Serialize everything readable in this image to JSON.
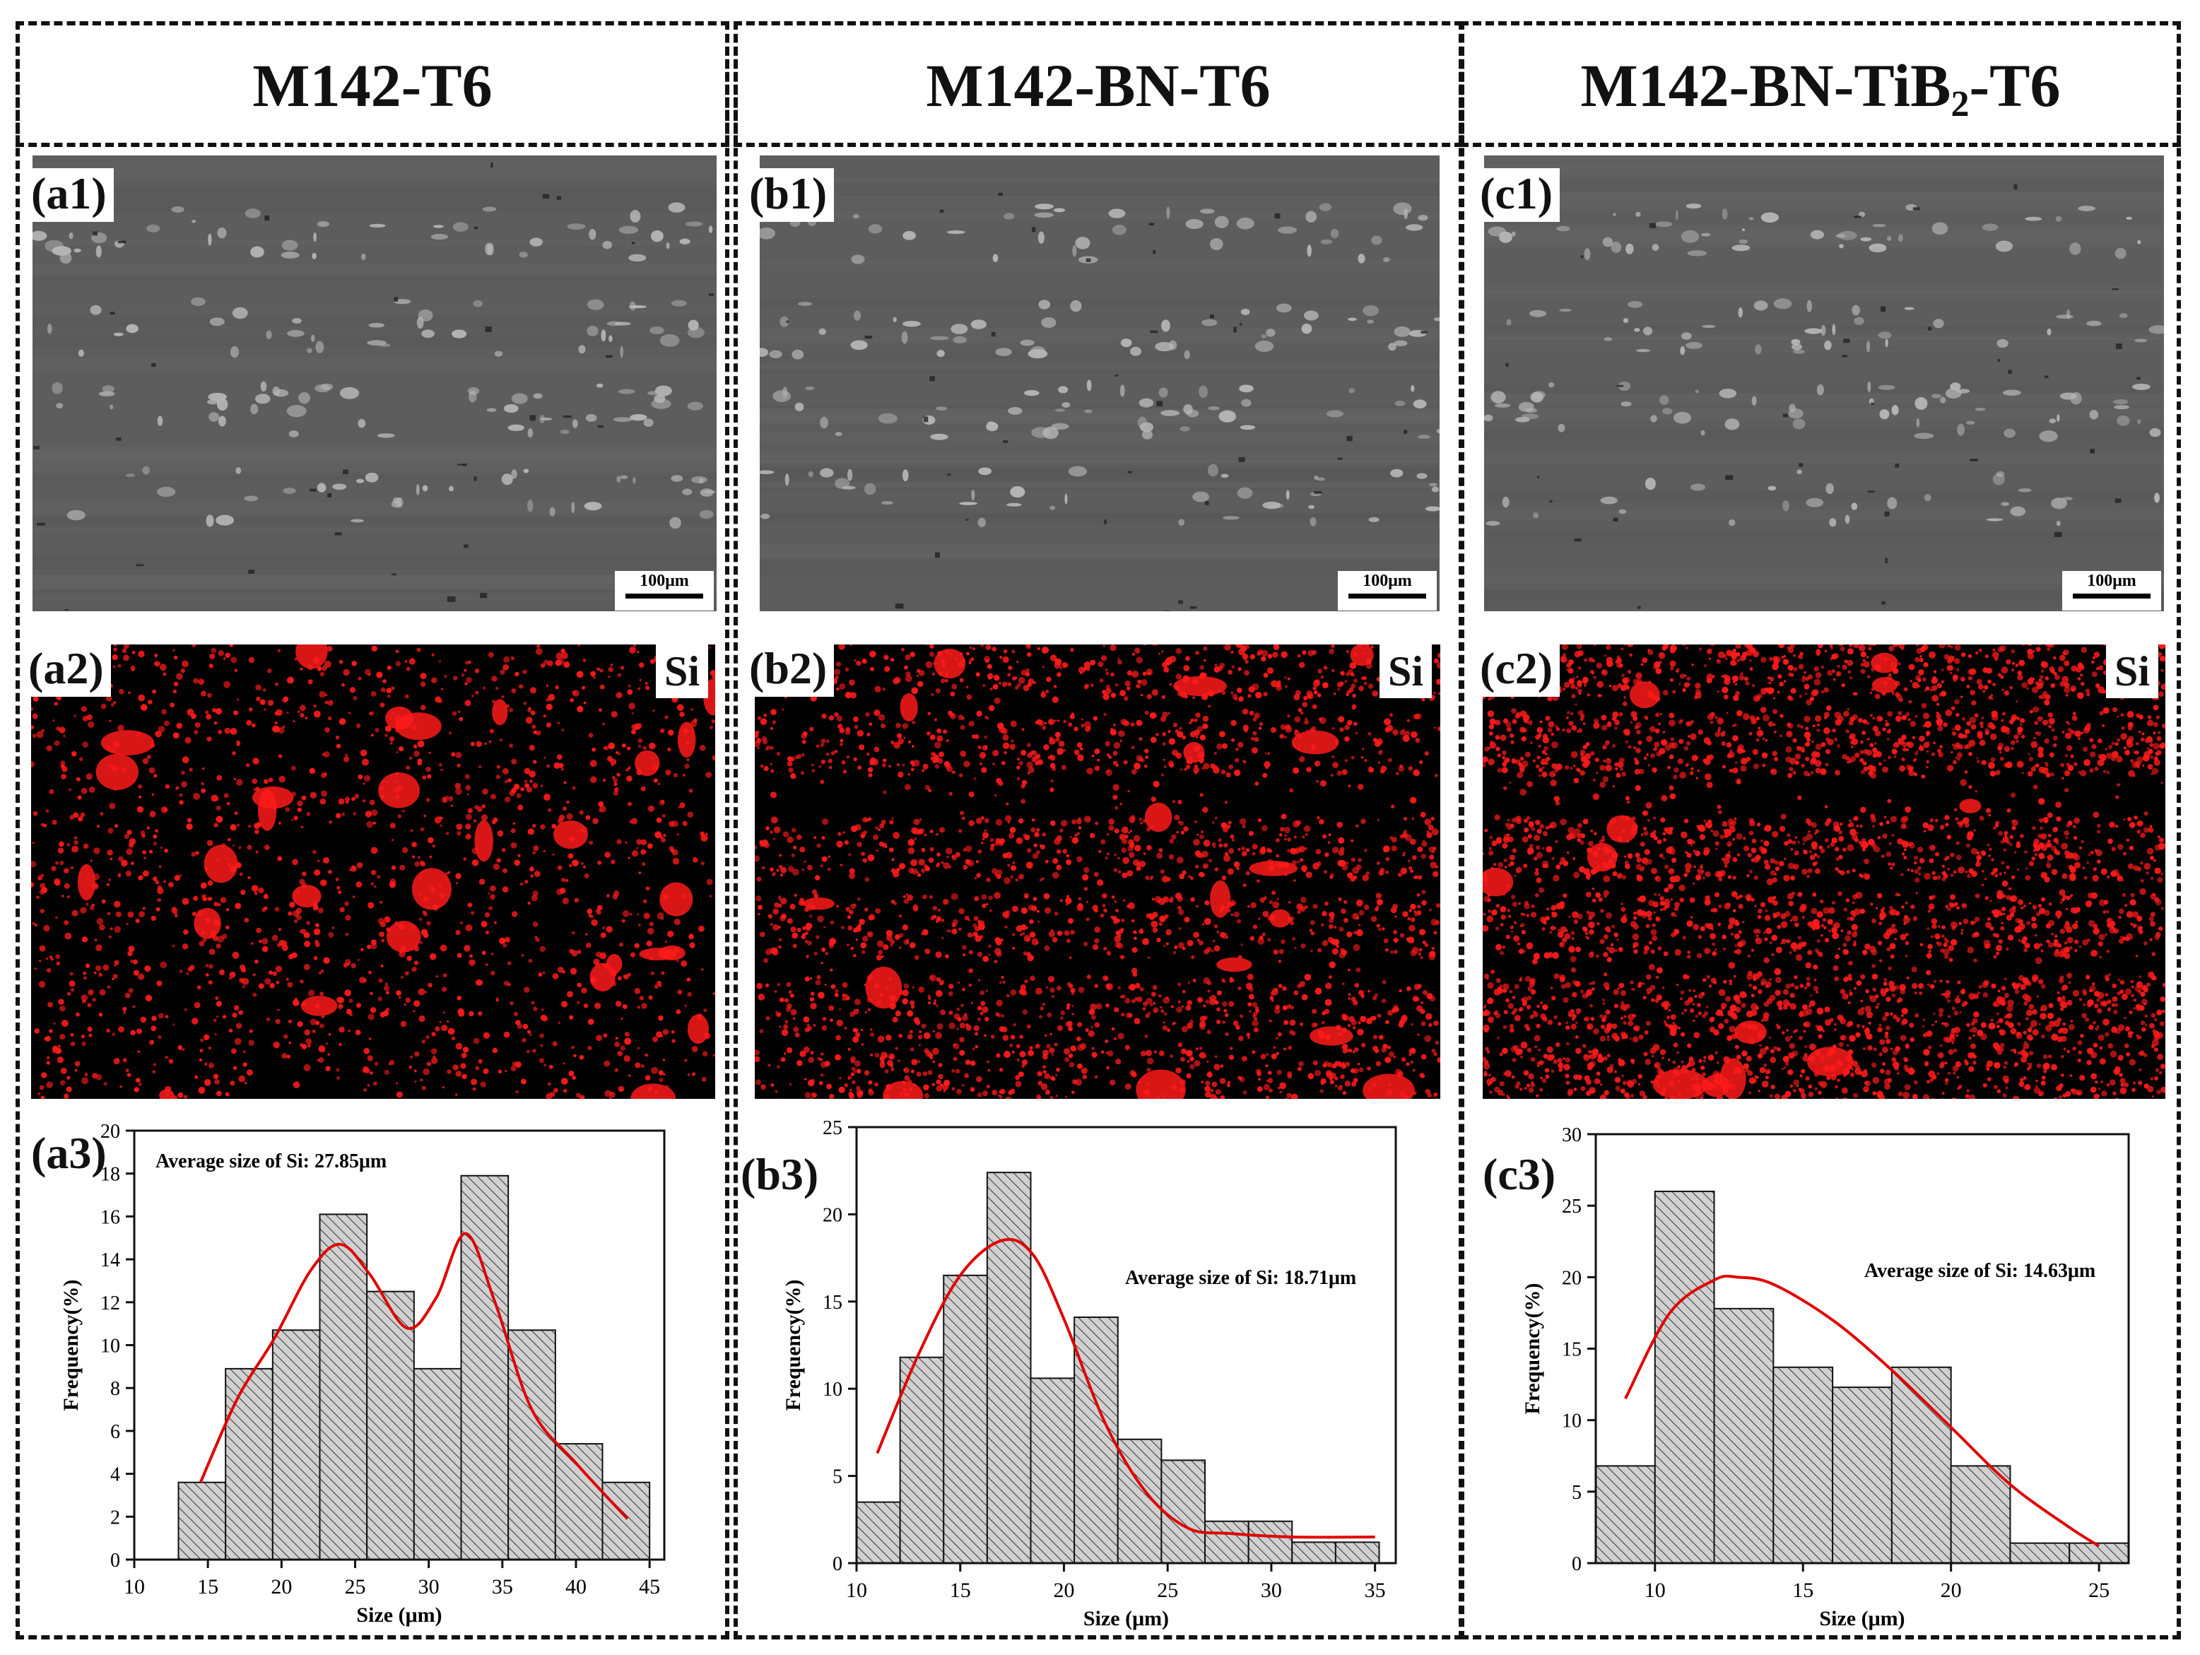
{
  "columns": [
    {
      "title": "M142-T6",
      "title_sub": "",
      "title_tail": ""
    },
    {
      "title": "M142-BN-T6",
      "title_sub": "",
      "title_tail": ""
    },
    {
      "title": "M142-BN-TiB",
      "title_sub": "2",
      "title_tail": "-T6"
    }
  ],
  "panels": {
    "sem": [
      {
        "label": "(a1)",
        "scale_bar": "100μm"
      },
      {
        "label": "(b1)",
        "scale_bar": "100μm"
      },
      {
        "label": "(c1)",
        "scale_bar": "100μm"
      }
    ],
    "eds": [
      {
        "label": "(a2)",
        "element": "Si"
      },
      {
        "label": "(b2)",
        "element": "Si"
      },
      {
        "label": "(c2)",
        "element": "Si"
      }
    ],
    "hist_labels": [
      "(a3)",
      "(b3)",
      "(c3)"
    ]
  },
  "colors": {
    "sem_background": "#5d5d5d",
    "sem_light_particles": "#b8b8b8",
    "sem_dark_particles": "#222222",
    "eds_background": "#000000",
    "eds_signal": "#ff1a1a",
    "hist_bar_fill": "#d0d0d0",
    "fit_curve": "#e00000"
  },
  "chart_data": [
    {
      "type": "bar",
      "title": "",
      "annotation": "Average size of Si: 27.85μm",
      "xlabel": "Size (μm)",
      "ylabel": "Frequency(%)",
      "bin_edges": [
        13,
        16.2,
        19.4,
        22.6,
        25.8,
        29,
        32.2,
        35.4,
        38.6,
        41.8,
        45
      ],
      "values": [
        3.6,
        8.9,
        10.7,
        16.1,
        12.5,
        8.9,
        17.9,
        10.7,
        5.4,
        3.6,
        1.8
      ],
      "fit_curve": {
        "x": [
          14.5,
          17,
          19.5,
          22,
          24,
          26,
          28.5,
          30.5,
          32.5,
          34.5,
          37,
          40,
          43.5
        ],
        "y": [
          3.6,
          7.5,
          10.3,
          13.5,
          14.7,
          13.3,
          10.8,
          12.2,
          15.2,
          12.0,
          7.0,
          4.5,
          1.9
        ]
      },
      "xlim": [
        10,
        46
      ],
      "ylim": [
        0,
        20
      ],
      "xticks": [
        10,
        15,
        20,
        25,
        30,
        35,
        40,
        45
      ],
      "yticks": [
        0,
        2,
        4,
        6,
        8,
        10,
        12,
        14,
        16,
        18,
        20
      ]
    },
    {
      "type": "bar",
      "title": "",
      "annotation": "Average size of Si: 18.71μm",
      "xlabel": "Size (μm)",
      "ylabel": "Frequency(%)",
      "bin_edges": [
        10,
        12.1,
        14.2,
        16.3,
        18.4,
        20.5,
        22.6,
        24.7,
        26.8,
        28.9,
        31,
        33.1,
        35.2
      ],
      "values": [
        3.5,
        11.8,
        16.5,
        22.4,
        10.6,
        14.1,
        7.1,
        5.9,
        2.4,
        2.4,
        1.2,
        1.2
      ],
      "fit_curve": {
        "x": [
          11,
          13,
          15,
          17,
          18.5,
          20,
          22,
          24,
          26,
          28,
          31,
          35
        ],
        "y": [
          6.3,
          12.0,
          16.5,
          18.5,
          17.7,
          14.0,
          8.0,
          4.0,
          2.0,
          1.7,
          1.5,
          1.5
        ]
      },
      "xlim": [
        10,
        36
      ],
      "ylim": [
        0,
        25
      ],
      "xticks": [
        10,
        15,
        20,
        25,
        30,
        35
      ],
      "yticks": [
        0,
        5,
        10,
        15,
        20,
        25
      ]
    },
    {
      "type": "bar",
      "title": "",
      "annotation": "Average size of Si: 14.63μm",
      "xlabel": "Size (μm)",
      "ylabel": "Frequency(%)",
      "bin_edges": [
        8,
        10,
        12,
        14,
        16,
        18,
        20,
        22,
        24,
        26
      ],
      "values": [
        6.8,
        26.0,
        17.8,
        13.7,
        12.3,
        13.7,
        6.8,
        1.4,
        1.4
      ],
      "fit_curve": {
        "x": [
          9,
          10.5,
          12,
          12.8,
          14,
          16,
          18,
          20,
          22,
          24,
          25
        ],
        "y": [
          11.5,
          17.5,
          19.8,
          20.0,
          19.5,
          17.0,
          13.5,
          9.5,
          5.5,
          2.5,
          1.2
        ]
      },
      "xlim": [
        8,
        26
      ],
      "ylim": [
        0,
        30
      ],
      "xticks": [
        10,
        15,
        20,
        25
      ],
      "yticks": [
        0,
        5,
        10,
        15,
        20,
        25,
        30
      ]
    }
  ]
}
